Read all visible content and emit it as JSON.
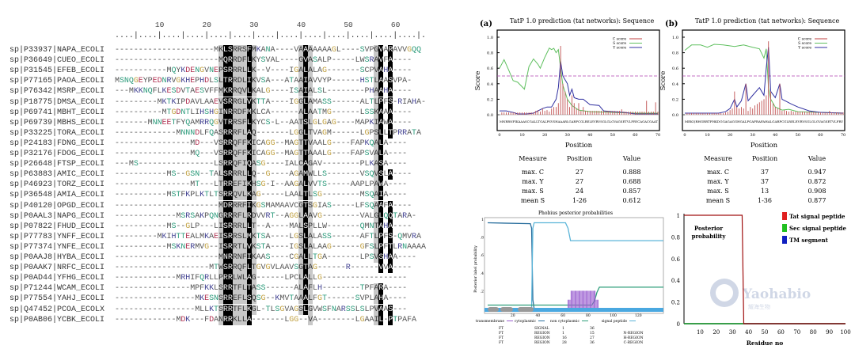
{
  "alignment": {
    "ruler_ticks": [
      "10",
      "20",
      "30",
      "40",
      "50",
      "60"
    ],
    "black_columns": [
      24,
      25,
      29,
      41,
      57,
      59
    ],
    "gray_columns": [
      23,
      26,
      27,
      28,
      30,
      40,
      42,
      56
    ],
    "rows": [
      {
        "label": "sp|P33937|NAPA_ECOLI",
        "seq": "---------------------MKLSRRSFMKANA----VAAAAAAAGL----SVPGVARAVVGQQ"
      },
      {
        "label": "sp|P36649|CUEO_ECOLI",
        "seq": "----------------------MQRRDFLKYSVAL----GVASALP-----LWSRAVFA----"
      },
      {
        "label": "sp|P31545|EFEB_ECOLI",
        "seq": "-----------MQYKDENGVNEPSRRRLLK--V----IGALALAG-------SCPVAHA----"
      },
      {
        "label": "sp|P77165|PAOA_ECOLI",
        "seq": "MSNQGEYPEDNRVGKHEPHDLSLTRRDLIKVSA---ATAAIAVVYP------HSTLAASVPA-"
      },
      {
        "label": "sp|P76342|MSRP_ECOLI",
        "seq": "---MKKNQFLKESDVTAESVFFMKRRQVLKALG----ISAIALSL--------PHAAHA----"
      },
      {
        "label": "sp|P18775|DMSA_ECOLI",
        "seq": "---------MKTKIPDAVLAAEVSRRGLVKTTA----IGGLAMASS------ALTLPFS-RIAHA-"
      },
      {
        "label": "sp|P69741|MBHT_ECOLI",
        "seq": "----------MTGDNTLIHSHGINRRDFMKLCA------ALAATMG------LSSKAAA----"
      },
      {
        "label": "sp|P69739|MBHS_ECOLI",
        "seq": "-------MNNEETFYQAMRRQGVTRRSFLKYCS-L--AATSLGLGAG----MAPKIAWA----"
      },
      {
        "label": "sp|P33225|TORA_ECOLI",
        "seq": "-------------MNNNDLFQASRRRFLAQ-------LGGLTVAGM------LGPSLLTPRRATA"
      },
      {
        "label": "sp|P24183|FDNG_ECOLI",
        "seq": "----------------MD---VSRRQFFKICAGG--MAGTTVAALG----FAPKQALA----"
      },
      {
        "label": "sp|P32176|FDOG_ECOLI",
        "seq": "----------------MQ---VSRRQFFKICAGG--MAGTTAAALG----FAPSVALA----"
      },
      {
        "label": "sp|P26648|FTSP_ECOLI",
        "seq": "---MS----------------LSRRQFIQASG----IALCAGAV--------PLKASA----"
      },
      {
        "label": "sp|P63883|AMIC_ECOLI",
        "seq": "-----------MS--GSN--TALSRRRLLQ--G----AGAMWLLS-------VSQVSLA----"
      },
      {
        "label": "sp|P46923|TORZ_ECOLI",
        "seq": "----------------MT---LTRREFIKHSG-I--AAGALVVTS-----AAPLPAWA----"
      },
      {
        "label": "sp|P36548|AMIA_ECOLI",
        "seq": "-----------MSTFKPLKTLTSRRQVLKAG-----LAALTLSG--------MSQAIA----"
      },
      {
        "label": "sp|P40120|OPGD_ECOLI",
        "seq": "----------------------MDRRRFIKGSMAMAAVCGTSGIAS-----LFSQAAFA----"
      },
      {
        "label": "sp|P0AAL3|NAPG_ECOLI",
        "seq": "-------------MSRSAKPQNGRRRFLRDVVRT--AGGLAAVG--------VALGLQQTARA-"
      },
      {
        "label": "sp|P07822|FHUD_ECOLI",
        "seq": "-----------MS--GLP---LISRRRLLT--A----MALSPLLW-------QMNTAHA----"
      },
      {
        "label": "sp|P77783|YNFF_ECOLI",
        "seq": "---------MKIHTTEALMKAEISRRSLMKTSA----LGSLALASS------AFTLPFS-QMVRA"
      },
      {
        "label": "sp|P77374|YNFE_ECOLI",
        "seq": "-----------MSKNERMVG--ISRRTLVKSTA----IGSLALAAG------GFSLPFTLRNAAAA"
      },
      {
        "label": "sp|P0AAJ8|HYBA_ECOLI",
        "seq": "----------------------MNRRNFIKAAS----CGALLTGA-------LPSVSHAA----"
      },
      {
        "label": "sp|P0AAK7|NRFC_ECOLI",
        "seq": "--------------------MTWSRRQFLTGVGVLAAVSGTAG------R------VVA----"
      },
      {
        "label": "sp|P0AD44|YFHG_ECOLI",
        "seq": "-------------MRHIFQRLLPRRLWLAG------LPCLALLG------------------"
      },
      {
        "label": "sp|P71244|WCAM_ECOLI",
        "seq": "----------------MPFKKLSRRTFLTASS------ALAFLH--------TPFARA----"
      },
      {
        "label": "sp|P77554|YAHJ_ECOLI",
        "seq": "-----------------MKESNSRREFLSQSG--KMVTAAALFGT------SVPLAHA----"
      },
      {
        "label": "sp|Q47452|PCOA_ECOLX",
        "seq": "-----------------MLLKTSRRTFLKGL-TLSGVAGSLGVWSFNARSSLSLPVAAS---"
      },
      {
        "label": "sp|P0AB06|YCBK_ECOLI",
        "seq": "-------------MDK---FDANRRKLLA-------LGG--VA--------LGAAIL-PTPAFA"
      }
    ]
  },
  "chart_data": [
    {
      "type": "line",
      "panel": "(a)",
      "title": "TatP 1.0 prediction (tat networks): Sequence",
      "xlabel": "Position",
      "ylabel": "Score",
      "xlim": [
        0,
        70
      ],
      "ylim": [
        0,
        1
      ],
      "xticks": [
        "0",
        "10",
        "20",
        "30",
        "40",
        "50",
        "60",
        "70"
      ],
      "yticks": [
        "0.0",
        "0.2",
        "0.4",
        "0.6",
        "0.8",
        "1.0"
      ],
      "threshold": 0.5,
      "legend": [
        "C score",
        "S score",
        "Y score"
      ],
      "legend_position": "top-right",
      "sequence": "MNRRNFIKAAASCGALLTGALPSVSHAAARLGARPCGLRELEVRVSGLGLGVAGSETVLFRYCAGACGAAT",
      "series": [
        {
          "name": "S score",
          "x": [
            0,
            2,
            4,
            6,
            8,
            10,
            11,
            13,
            15,
            17,
            18,
            20,
            22,
            23,
            24,
            25,
            26,
            27,
            28,
            30,
            32,
            35,
            40,
            50,
            60,
            70
          ],
          "y": [
            0.6,
            0.71,
            0.58,
            0.44,
            0.42,
            0.36,
            0.33,
            0.62,
            0.72,
            0.65,
            0.6,
            0.74,
            0.86,
            0.84,
            0.857,
            0.8,
            0.84,
            0.6,
            0.38,
            0.2,
            0.12,
            0.06,
            0.04,
            0.03,
            0.02,
            0.02
          ]
        },
        {
          "name": "Y score",
          "x": [
            0,
            3,
            6,
            8,
            12,
            15,
            17,
            19,
            21,
            23,
            25,
            26,
            27,
            28,
            30,
            31,
            32,
            33,
            35,
            37,
            40,
            44,
            46,
            50,
            55,
            60,
            70
          ],
          "y": [
            0.05,
            0.05,
            0.03,
            0.01,
            0.01,
            0.02,
            0.05,
            0.08,
            0.1,
            0.1,
            0.2,
            0.35,
            0.688,
            0.5,
            0.4,
            0.25,
            0.33,
            0.22,
            0.2,
            0.2,
            0.13,
            0.12,
            0.05,
            0.04,
            0.03,
            0.01,
            0.01
          ]
        },
        {
          "name": "C score",
          "bars": [
            0.03,
            0.03,
            0.03,
            0.03,
            0.03,
            0.03,
            0.03,
            0.03,
            0.03,
            0.03,
            0.03,
            0.03,
            0.03,
            0.03,
            0.03,
            0.05,
            0.06,
            0.04,
            0.08,
            0.05,
            0.06,
            0.04,
            0.08,
            0.1,
            0.1,
            0.15,
            0.888,
            0.4,
            0.3,
            0.2,
            0.1,
            0.25,
            0.15,
            0.08,
            0.15,
            0.05,
            0.1,
            0.05,
            0.05,
            0.05,
            0.05,
            0.05,
            0.05,
            0.05,
            0.05,
            0.05,
            0.05,
            0.05,
            0.05,
            0.05,
            0.05,
            0.05,
            0.05,
            0.07,
            0.04,
            0.04,
            0.04,
            0.04,
            0.04,
            0.04,
            0.04,
            0.04,
            0.04,
            0.04,
            0.18,
            0.04,
            0.04,
            0.04,
            0.16,
            0.04
          ]
        }
      ],
      "table": {
        "headers": [
          "Measure",
          "Position",
          "Value"
        ],
        "rows": [
          [
            "max. C",
            "27",
            "0.888"
          ],
          [
            "max. Y",
            "27",
            "0.688"
          ],
          [
            "max. S",
            "24",
            "0.857"
          ],
          [
            "mean S",
            "1-26",
            "0.612"
          ]
        ]
      }
    },
    {
      "type": "line",
      "panel": "(b)",
      "title": "TatP 1.0 prediction (tat networks): Sequence",
      "xlabel": "Position",
      "ylabel": "Score",
      "xlim": [
        0,
        70
      ],
      "ylim": [
        0,
        1
      ],
      "xticks": [
        "0",
        "10",
        "20",
        "30",
        "40",
        "50",
        "60",
        "70"
      ],
      "yticks": [
        "0.0",
        "0.2",
        "0.4",
        "0.6",
        "0.8",
        "1.0"
      ],
      "threshold": 0.5,
      "legend": [
        "C score",
        "S score",
        "Y score"
      ],
      "legend_position": "top-right",
      "sequence": "MEKQRHGRRTFHKDGGAGAGGHGALPGAFRAFAHALGARPCGLRELEVRVSGLGLGVAGSETVLFRY",
      "series": [
        {
          "name": "S score",
          "x": [
            0,
            3,
            7,
            10,
            13,
            17,
            22,
            26,
            30,
            33,
            35,
            36,
            37,
            38,
            40,
            43,
            46,
            50,
            60,
            70
          ],
          "y": [
            0.83,
            0.9,
            0.9,
            0.87,
            0.908,
            0.9,
            0.88,
            0.9,
            0.87,
            0.85,
            0.73,
            0.85,
            0.35,
            0.2,
            0.1,
            0.06,
            0.07,
            0.04,
            0.03,
            0.02
          ]
        },
        {
          "name": "Y score",
          "x": [
            0,
            15,
            18,
            20,
            22,
            23,
            25,
            27,
            28,
            30,
            33,
            35,
            36,
            37,
            38,
            40,
            42,
            43,
            45,
            47,
            50,
            55,
            60,
            70
          ],
          "y": [
            0.02,
            0.02,
            0.04,
            0.08,
            0.2,
            0.1,
            0.18,
            0.4,
            0.18,
            0.25,
            0.35,
            0.25,
            0.6,
            0.872,
            0.3,
            0.22,
            0.4,
            0.2,
            0.17,
            0.14,
            0.1,
            0.05,
            0.03,
            0.02
          ]
        },
        {
          "name": "C score",
          "bars": [
            0.02,
            0.02,
            0.02,
            0.02,
            0.02,
            0.02,
            0.02,
            0.02,
            0.02,
            0.02,
            0.02,
            0.02,
            0.02,
            0.02,
            0.02,
            0.02,
            0.02,
            0.03,
            0.04,
            0.06,
            0.08,
            0.3,
            0.1,
            0.08,
            0.1,
            0.08,
            0.4,
            0.05,
            0.1,
            0.08,
            0.12,
            0.14,
            0.16,
            0.18,
            0.2,
            0.25,
            0.947,
            0.3,
            0.15,
            0.1,
            0.08,
            0.4,
            0.05,
            0.06,
            0.05,
            0.04,
            0.05,
            0.04,
            0.04,
            0.04,
            0.04,
            0.04,
            0.04,
            0.04,
            0.04,
            0.04,
            0.04,
            0.03,
            0.03,
            0.03,
            0.03,
            0.03,
            0.03,
            0.05,
            0.03,
            0.03,
            0.03,
            0.03,
            0.03,
            0.03
          ]
        }
      ],
      "table": {
        "headers": [
          "Measure",
          "Position",
          "Value"
        ],
        "rows": [
          [
            "max. C",
            "37",
            "0.947"
          ],
          [
            "max. Y",
            "37",
            "0.872"
          ],
          [
            "max. S",
            "13",
            "0.908"
          ],
          [
            "mean S",
            "1-36",
            "0.877"
          ]
        ]
      }
    },
    {
      "type": "line",
      "title": "Phobius posterior probabilities",
      "ylabel": "Posterior label probability",
      "xlim": [
        0,
        140
      ],
      "ylim": [
        0,
        1
      ],
      "xticks": [
        "20",
        "40",
        "60",
        "80",
        "100",
        "120"
      ],
      "yticks": [
        ".2",
        ".4",
        ".6",
        ".8",
        "1"
      ],
      "legend": [
        "transmembrane",
        "cytoplasmic",
        "non cytoplasmic",
        "signal peptide"
      ],
      "legend_position": "bottom",
      "series": [
        {
          "name": "cytoplasmic",
          "color": "#2a6f9e",
          "x": [
            0,
            34,
            35,
            36,
            37,
            140
          ],
          "y": [
            0.96,
            0.95,
            0.9,
            0.1,
            0.0,
            0.0
          ]
        },
        {
          "name": "signal peptide",
          "color": "#5ab4d8",
          "x": [
            0,
            35,
            36,
            37,
            62,
            64,
            66,
            140
          ],
          "y": [
            0,
            0,
            0.9,
            0.96,
            0.96,
            0.9,
            0.76,
            0.76
          ]
        },
        {
          "name": "non cytoplasmic",
          "color": "#2e9e7a",
          "x": [
            0,
            83,
            85,
            87,
            89,
            140
          ],
          "y": [
            0.04,
            0.04,
            0.08,
            0.18,
            0.24,
            0.24
          ]
        },
        {
          "name": "transmembrane",
          "color": "#9a5fd0",
          "bars_range": [
            64,
            88
          ],
          "value": 0.2
        }
      ],
      "table": {
        "rows": [
          [
            "FT",
            "SIGNAL",
            "1",
            "36",
            ""
          ],
          [
            "FT",
            "REGION",
            "1",
            "15",
            "N-REGION"
          ],
          [
            "FT",
            "REGION",
            "16",
            "27",
            "H-REGION"
          ],
          [
            "FT",
            "REGION",
            "28",
            "36",
            "C-REGION"
          ]
        ]
      }
    },
    {
      "type": "line",
      "annotation": "Posterior probability",
      "xlabel": "Residue no",
      "xlim": [
        0,
        100
      ],
      "ylim": [
        0,
        1
      ],
      "xticks": [
        "10",
        "20",
        "30",
        "40",
        "50",
        "60",
        "70",
        "80",
        "90",
        "100"
      ],
      "yticks": [
        "0",
        "0.2",
        "0.4",
        "0.6",
        "0.8",
        "1"
      ],
      "legend": [
        {
          "name": "Tat signal peptide",
          "color": "#e02020"
        },
        {
          "name": "Sec signal peptide",
          "color": "#20c020"
        },
        {
          "name": "TM segment",
          "color": "#1020c0"
        }
      ],
      "legend_position": "top-right",
      "series": [
        {
          "name": "Tat signal peptide",
          "color": "#a01010",
          "x": [
            0,
            36,
            37,
            100
          ],
          "y": [
            1,
            1,
            0,
            0
          ]
        },
        {
          "name": "Sec signal peptide",
          "color": "#20c020",
          "x": [
            0,
            100
          ],
          "y": [
            0,
            0
          ]
        },
        {
          "name": "TM segment",
          "color": "#1020c0",
          "x": [
            0,
            100
          ],
          "y": [
            0,
            0
          ]
        }
      ],
      "watermark": {
        "text": "Yaohabio",
        "subtext": "耀海生物"
      }
    }
  ]
}
